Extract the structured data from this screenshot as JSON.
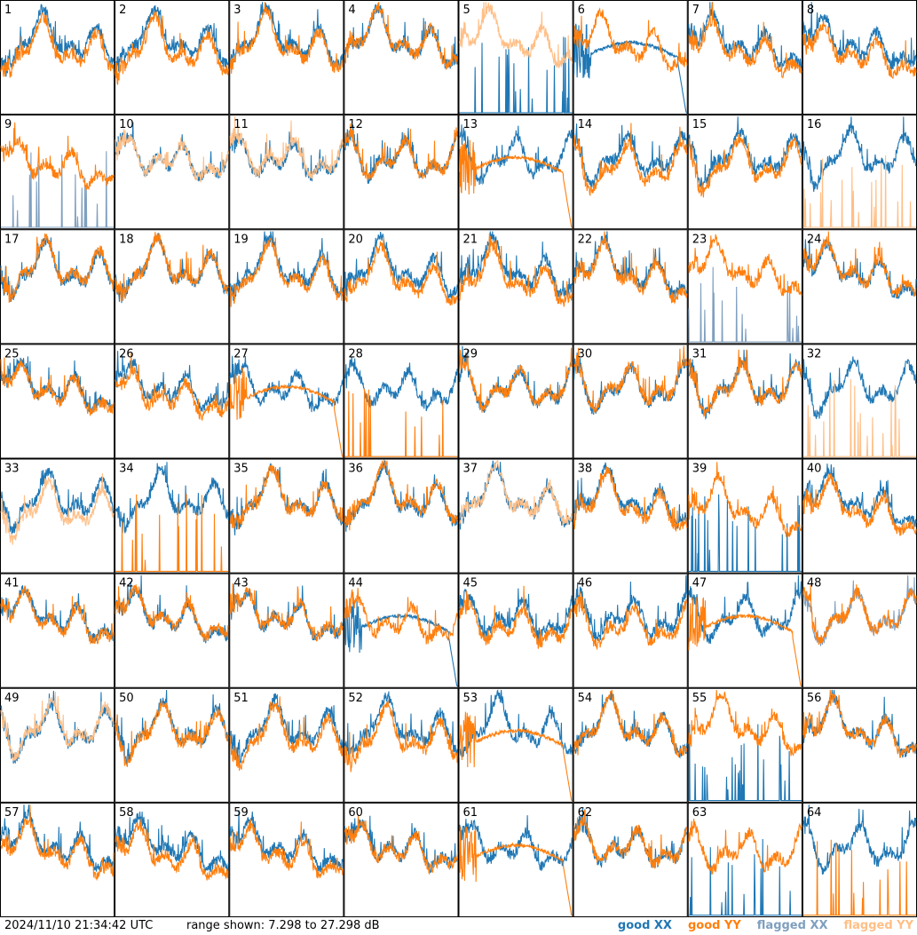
{
  "chart_data": {
    "type": "line",
    "panel_count": 64,
    "panel_labels": [
      "1",
      "2",
      "3",
      "4",
      "5",
      "6",
      "7",
      "8",
      "9",
      "10",
      "11",
      "12",
      "13",
      "14",
      "15",
      "16",
      "17",
      "18",
      "19",
      "20",
      "21",
      "22",
      "23",
      "24",
      "25",
      "26",
      "27",
      "28",
      "29",
      "30",
      "31",
      "32",
      "33",
      "34",
      "35",
      "36",
      "37",
      "38",
      "39",
      "40",
      "41",
      "42",
      "43",
      "44",
      "45",
      "46",
      "47",
      "48",
      "49",
      "50",
      "51",
      "52",
      "53",
      "54",
      "55",
      "56",
      "57",
      "58",
      "59",
      "60",
      "61",
      "62",
      "63",
      "64"
    ],
    "ylim_db": [
      7.298,
      27.298
    ],
    "series": [
      {
        "name": "good XX",
        "color": "#1f77b4"
      },
      {
        "name": "good YY",
        "color": "#ff7f0e"
      },
      {
        "name": "flagged XX",
        "color": "#7f9fbf"
      },
      {
        "name": "flagged YY",
        "color": "#ffbf87"
      }
    ],
    "flagged_xx_panels": [
      9,
      23,
      48
    ],
    "flagged_yy_panels": [
      5,
      10,
      11,
      16,
      32,
      33,
      37,
      49
    ],
    "spiky_panels": [
      5,
      9,
      16,
      23,
      28,
      32,
      34,
      39,
      55,
      63,
      64
    ],
    "decay_panels": [
      6,
      13,
      27,
      44,
      47,
      53,
      61
    ]
  },
  "footer": {
    "timestamp": "2024/11/10 21:34:42 UTC",
    "range_text": "range shown: 7.298 to 27.298 dB",
    "legend": {
      "good_xx": "good XX",
      "good_yy": "good YY",
      "flagged_xx": "flagged XX",
      "flagged_yy": "flagged YY"
    }
  }
}
